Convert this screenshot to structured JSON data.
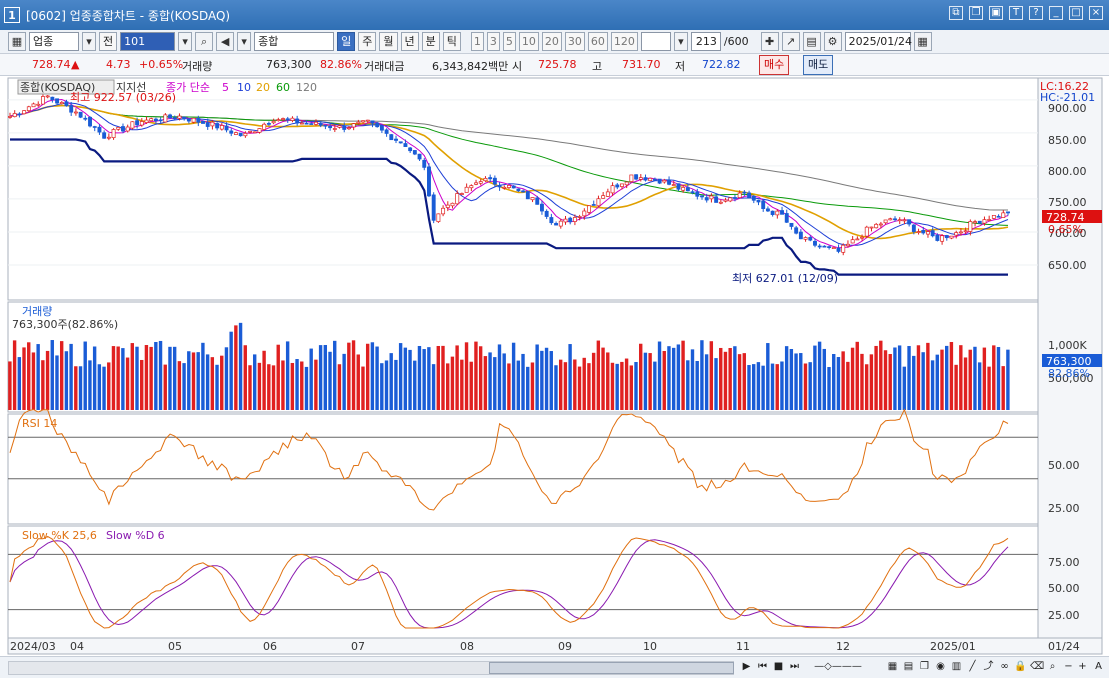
{
  "window": {
    "badge": "1",
    "title": "[0602] 업종종합차트 - 종합(KOSDAQ)"
  },
  "toolbar": {
    "market_select": "업종",
    "prev_btn": "전",
    "code": "101",
    "index_name": "종합(KOSDAQ)",
    "period_tabs": [
      "일",
      "주",
      "월",
      "년",
      "분",
      "틱"
    ],
    "active_period": "일",
    "minute_options": [
      "1",
      "3",
      "5",
      "10",
      "20",
      "30",
      "60",
      "120"
    ],
    "count": "213",
    "count_max": "/600",
    "date": "2025/01/24"
  },
  "quote": {
    "price": "728.74",
    "arrow": "▲",
    "change": "4.73",
    "change_pct": "+0.65%",
    "volume_label": "거래량",
    "volume": "763,300",
    "volume_pct": "82.86%",
    "amount_label": "거래대금",
    "amount": "6,343,842백만",
    "open_label": "시",
    "open": "725.78",
    "high_label": "고",
    "high": "731.70",
    "low_label": "저",
    "low": "722.82",
    "buy_label": "매수",
    "sell_label": "매도"
  },
  "price_pane": {
    "series_name": "종합(KOSDAQ)",
    "indicator_name": "지지선",
    "ma_label": "종가 단순",
    "ma_periods": [
      "5",
      "10",
      "20",
      "60",
      "120"
    ],
    "ma_colors": [
      "#cc00cc",
      "#1e3fd6",
      "#e0a000",
      "#0a9a0a",
      "#7a7a7a"
    ],
    "high_annotation": "최고 922.57 (03/26)",
    "low_annotation": "최저 627.01 (12/09)",
    "lc": "LC:16.22",
    "hc": "HC:-21.01",
    "y_ticks": [
      "900.00",
      "850.00",
      "800.00",
      "750.00",
      "700.00",
      "650.00"
    ],
    "last_price_tag": "728.74",
    "last_pct_tag": "0.65%"
  },
  "volume_pane": {
    "title": "거래량",
    "subtitle": "763,300주(82.86%)",
    "y_ticks": [
      "1,000K",
      "500,000"
    ],
    "last_tag": "763,300",
    "pct_tag": "82.86%"
  },
  "rsi_pane": {
    "title": "RSI 14",
    "y_ticks": [
      "50.00",
      "25.00"
    ]
  },
  "stoch_pane": {
    "title_k": "Slow %K 25,6",
    "title_d": "Slow %D 6",
    "y_ticks": [
      "75.00",
      "50.00",
      "25.00"
    ]
  },
  "x_axis": {
    "labels": [
      "2024/03",
      "04",
      "05",
      "06",
      "07",
      "08",
      "09",
      "10",
      "11",
      "12",
      "2025/01"
    ],
    "last_date": "01/24"
  },
  "colors": {
    "up": "#e02020",
    "down": "#1a5cd6",
    "support": "#0a1a80",
    "titlebar": "#3a78c0"
  },
  "chart_data": {
    "type": "candlestick",
    "x_range": [
      "2024/03/04",
      "2025/01/24"
    ],
    "price_range": [
      627.01,
      922.57
    ],
    "ohlc_last": {
      "open": 725.78,
      "high": 731.7,
      "low": 722.82,
      "close": 728.74
    },
    "ma_periods": [
      5,
      10,
      20,
      60,
      120
    ],
    "rsi_period": 14,
    "stochastic": {
      "k": 25,
      "k_slow": 6,
      "d": 6
    }
  }
}
